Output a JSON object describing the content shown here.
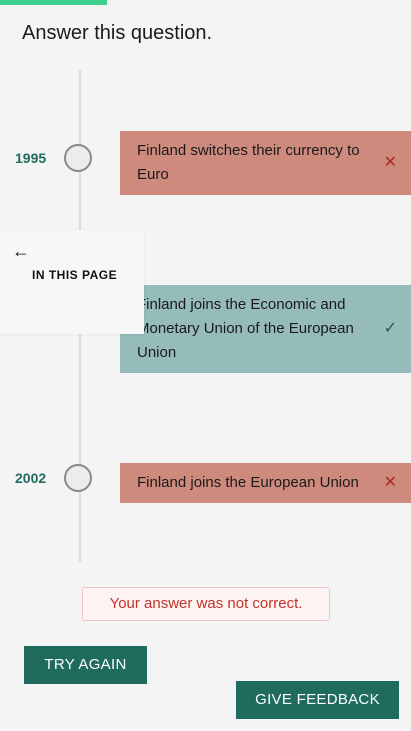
{
  "progress": {
    "fraction": 0.26
  },
  "question": {
    "title": "Answer this question."
  },
  "timeline": {
    "events": [
      {
        "year": "1995",
        "text": "Finland switches their currency to Euro",
        "status": "wrong",
        "status_icon": "cross-icon",
        "mark": "✕"
      },
      {
        "year": "",
        "text": "Finland joins the Economic and Monetary Union of the European Union",
        "status": "correct",
        "status_icon": "check-icon",
        "mark": "✓"
      },
      {
        "year": "2002",
        "text": "Finland joins the European Union",
        "status": "wrong",
        "status_icon": "cross-icon",
        "mark": "✕"
      }
    ]
  },
  "in_page": {
    "label": "IN THIS PAGE",
    "back_icon": "arrow-left-icon",
    "back_glyph": "←"
  },
  "result": {
    "message": "Your answer was not correct."
  },
  "buttons": {
    "try_again": "TRY AGAIN",
    "give_feedback": "GIVE FEEDBACK"
  },
  "colors": {
    "accent": "#1f6b5e",
    "progress": "#3fd08d",
    "wrong": "#cf8a7e",
    "correct": "#95bcba",
    "error_text": "#c0342b"
  }
}
